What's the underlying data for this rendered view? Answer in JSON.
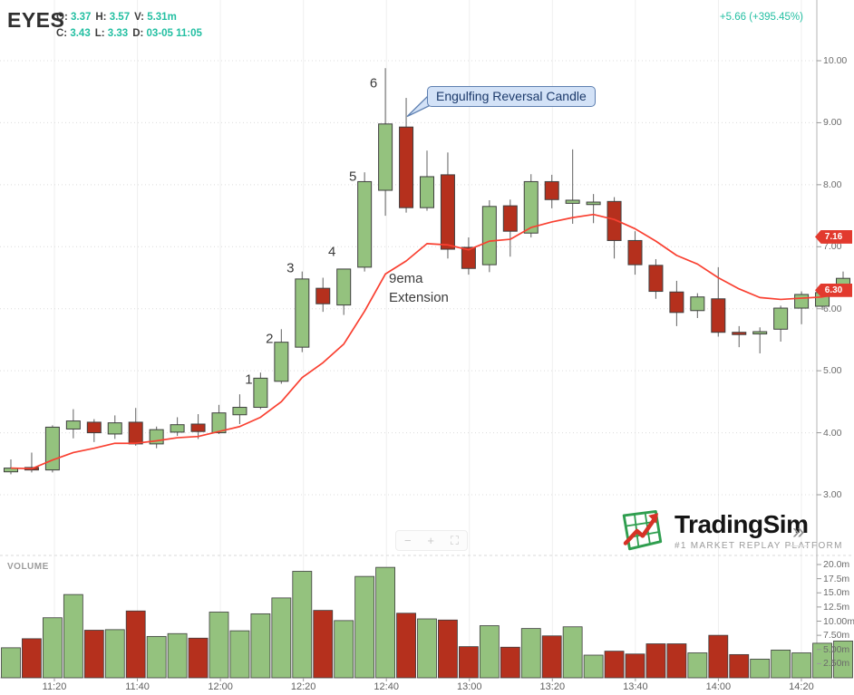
{
  "header": {
    "symbol": "EYES",
    "fields_row1": [
      {
        "label": "O:",
        "value": "3.37"
      },
      {
        "label": "H:",
        "value": "3.57"
      },
      {
        "label": "V:",
        "value": "5.31m"
      }
    ],
    "fields_row2": [
      {
        "label": "C:",
        "value": "3.43"
      },
      {
        "label": "L:",
        "value": "3.33"
      },
      {
        "label": "D:",
        "value": "03-05 11:05"
      }
    ],
    "change": "+5.66 (+395.45%)"
  },
  "colors": {
    "up": "#94c27e",
    "down": "#b5301d",
    "ema": "#f94031",
    "accent_teal": "#23bfa2",
    "badge": "#e23a2e",
    "callout_bg": "#d3e2f7",
    "callout_border": "#5d7fb0"
  },
  "price_axis": {
    "ticks": [
      "10.00",
      "9.00",
      "8.00",
      "7.00",
      "6.00",
      "5.00",
      "4.00",
      "3.00"
    ],
    "badges": [
      {
        "value": "7.16",
        "price": 7.16
      },
      {
        "value": "6.30",
        "price": 6.3
      }
    ]
  },
  "volume_axis": {
    "label": "VOLUME",
    "ticks": [
      {
        "label": "20.0m",
        "value": 20
      },
      {
        "label": "17.5m",
        "value": 17.5
      },
      {
        "label": "15.0m",
        "value": 15
      },
      {
        "label": "12.5m",
        "value": 12.5
      },
      {
        "label": "10.00m",
        "value": 10
      },
      {
        "label": "7.50m",
        "value": 7.5
      },
      {
        "label": "5.00m",
        "value": 5
      },
      {
        "label": "2.50m",
        "value": 2.5
      }
    ]
  },
  "time_axis": {
    "labels": [
      "11:20",
      "11:40",
      "12:00",
      "12:20",
      "12:40",
      "13:00",
      "13:20",
      "13:40",
      "14:00",
      "14:20"
    ]
  },
  "toolbar": {
    "zoom_out": "−",
    "zoom_in": "+",
    "reset": "⛶"
  },
  "logo": {
    "name": "TradingSim",
    "tagline": "#1 MARKET REPLAY PLATFORM"
  },
  "panel_toggle": "»",
  "chart_data": {
    "type": "candlestick",
    "symbol": "EYES",
    "interval": "5min",
    "date": "03-05",
    "title": "EYES 5-minute candlestick chart with 9 EMA and volume",
    "price_axis_range": [
      2.6,
      10.35
    ],
    "volume_axis_range_millions": [
      0,
      21
    ],
    "grid": true,
    "candles": [
      {
        "t": "11:05",
        "o": 3.37,
        "h": 3.57,
        "l": 3.33,
        "c": 3.43,
        "v": 5.3
      },
      {
        "t": "11:10",
        "o": 3.44,
        "h": 3.68,
        "l": 3.36,
        "c": 3.4,
        "v": 6.9
      },
      {
        "t": "11:15",
        "o": 3.4,
        "h": 4.12,
        "l": 3.36,
        "c": 4.09,
        "v": 10.6
      },
      {
        "t": "11:20",
        "o": 4.06,
        "h": 4.38,
        "l": 3.91,
        "c": 4.19,
        "v": 14.7
      },
      {
        "t": "11:25",
        "o": 4.17,
        "h": 4.22,
        "l": 3.85,
        "c": 4.0,
        "v": 8.4
      },
      {
        "t": "11:30",
        "o": 3.98,
        "h": 4.28,
        "l": 3.9,
        "c": 4.16,
        "v": 8.5
      },
      {
        "t": "11:35",
        "o": 4.17,
        "h": 4.4,
        "l": 3.79,
        "c": 3.82,
        "v": 11.8
      },
      {
        "t": "11:40",
        "o": 3.82,
        "h": 4.1,
        "l": 3.75,
        "c": 4.05,
        "v": 7.3
      },
      {
        "t": "11:45",
        "o": 4.01,
        "h": 4.25,
        "l": 3.95,
        "c": 4.13,
        "v": 7.8
      },
      {
        "t": "11:50",
        "o": 4.14,
        "h": 4.3,
        "l": 3.9,
        "c": 4.02,
        "v": 7.0
      },
      {
        "t": "11:55",
        "o": 4.0,
        "h": 4.45,
        "l": 3.98,
        "c": 4.32,
        "v": 11.6
      },
      {
        "t": "12:00",
        "o": 4.29,
        "h": 4.62,
        "l": 4.14,
        "c": 4.41,
        "v": 8.3
      },
      {
        "t": "12:05",
        "o": 4.41,
        "h": 4.97,
        "l": 4.38,
        "c": 4.88,
        "v": 11.3
      },
      {
        "t": "12:10",
        "o": 4.83,
        "h": 5.67,
        "l": 4.79,
        "c": 5.46,
        "v": 14.1
      },
      {
        "t": "12:15",
        "o": 5.38,
        "h": 6.6,
        "l": 5.3,
        "c": 6.48,
        "v": 18.8
      },
      {
        "t": "12:20",
        "o": 6.33,
        "h": 6.5,
        "l": 5.95,
        "c": 6.08,
        "v": 11.9
      },
      {
        "t": "12:25",
        "o": 6.06,
        "h": 6.64,
        "l": 5.9,
        "c": 6.64,
        "v": 10.1
      },
      {
        "t": "12:30",
        "o": 6.67,
        "h": 8.2,
        "l": 6.6,
        "c": 8.05,
        "v": 17.9
      },
      {
        "t": "12:35",
        "o": 7.91,
        "h": 9.88,
        "l": 7.5,
        "c": 8.98,
        "v": 19.5
      },
      {
        "t": "12:40",
        "o": 8.93,
        "h": 9.4,
        "l": 7.55,
        "c": 7.63,
        "v": 11.4
      },
      {
        "t": "12:45",
        "o": 7.63,
        "h": 8.55,
        "l": 7.58,
        "c": 8.13,
        "v": 10.4
      },
      {
        "t": "12:50",
        "o": 8.16,
        "h": 8.52,
        "l": 6.81,
        "c": 6.96,
        "v": 10.2
      },
      {
        "t": "12:55",
        "o": 6.99,
        "h": 7.15,
        "l": 6.55,
        "c": 6.65,
        "v": 5.5
      },
      {
        "t": "13:00",
        "o": 6.71,
        "h": 7.75,
        "l": 6.59,
        "c": 7.65,
        "v": 9.2
      },
      {
        "t": "13:05",
        "o": 7.66,
        "h": 7.76,
        "l": 6.84,
        "c": 7.25,
        "v": 5.4
      },
      {
        "t": "13:10",
        "o": 7.22,
        "h": 8.17,
        "l": 7.15,
        "c": 8.05,
        "v": 8.7
      },
      {
        "t": "13:15",
        "o": 8.05,
        "h": 8.16,
        "l": 7.62,
        "c": 7.76,
        "v": 7.4
      },
      {
        "t": "13:20",
        "o": 7.7,
        "h": 8.57,
        "l": 7.37,
        "c": 7.75,
        "v": 9.0
      },
      {
        "t": "13:25",
        "o": 7.68,
        "h": 7.85,
        "l": 7.38,
        "c": 7.72,
        "v": 4.0
      },
      {
        "t": "13:30",
        "o": 7.73,
        "h": 7.8,
        "l": 6.81,
        "c": 7.1,
        "v": 4.7
      },
      {
        "t": "13:35",
        "o": 7.1,
        "h": 7.25,
        "l": 6.55,
        "c": 6.71,
        "v": 4.2
      },
      {
        "t": "13:40",
        "o": 6.7,
        "h": 6.8,
        "l": 6.16,
        "c": 6.28,
        "v": 6.0
      },
      {
        "t": "13:45",
        "o": 6.27,
        "h": 6.45,
        "l": 5.72,
        "c": 5.94,
        "v": 6.0
      },
      {
        "t": "13:50",
        "o": 5.97,
        "h": 6.25,
        "l": 5.85,
        "c": 6.19,
        "v": 4.4
      },
      {
        "t": "13:55",
        "o": 6.16,
        "h": 6.67,
        "l": 5.55,
        "c": 5.62,
        "v": 7.5
      },
      {
        "t": "14:00",
        "o": 5.62,
        "h": 5.72,
        "l": 5.38,
        "c": 5.6,
        "v": 4.1
      },
      {
        "t": "14:05",
        "o": 5.61,
        "h": 5.7,
        "l": 5.28,
        "c": 5.63,
        "v": 3.3
      },
      {
        "t": "14:10",
        "o": 5.67,
        "h": 6.05,
        "l": 5.47,
        "c": 6.01,
        "v": 4.9
      },
      {
        "t": "14:15",
        "o": 6.01,
        "h": 6.28,
        "l": 5.75,
        "c": 6.23,
        "v": 4.4
      },
      {
        "t": "14:20",
        "o": 6.04,
        "h": 6.3,
        "l": 5.98,
        "c": 6.26,
        "v": 6.1
      },
      {
        "t": "14:25",
        "o": 6.26,
        "h": 6.6,
        "l": 6.2,
        "c": 6.49,
        "v": 6.5
      }
    ],
    "ema9": [
      3.43,
      3.42,
      3.56,
      3.68,
      3.75,
      3.83,
      3.83,
      3.87,
      3.92,
      3.94,
      4.02,
      4.1,
      4.25,
      4.5,
      4.89,
      5.13,
      5.43,
      5.96,
      6.56,
      6.77,
      7.05,
      7.03,
      6.95,
      7.09,
      7.12,
      7.31,
      7.4,
      7.47,
      7.52,
      7.44,
      7.29,
      7.09,
      6.86,
      6.72,
      6.5,
      6.32,
      6.18,
      6.15,
      6.17,
      6.19,
      6.25
    ],
    "annotations": {
      "numbers": [
        {
          "label": "1",
          "candle": 12,
          "price": 4.86
        },
        {
          "label": "2",
          "candle": 13,
          "price": 5.52
        },
        {
          "label": "3",
          "candle": 14,
          "price": 6.66
        },
        {
          "label": "4",
          "candle": 16,
          "price": 6.92
        },
        {
          "label": "5",
          "candle": 17,
          "price": 8.13
        },
        {
          "label": "6",
          "candle": 18,
          "price": 9.63
        }
      ],
      "callout": {
        "text": "Engulfing Reversal Candle",
        "candle": 19,
        "anchor_price": 9.1
      },
      "ema_note": "9ema\nExtension"
    }
  }
}
